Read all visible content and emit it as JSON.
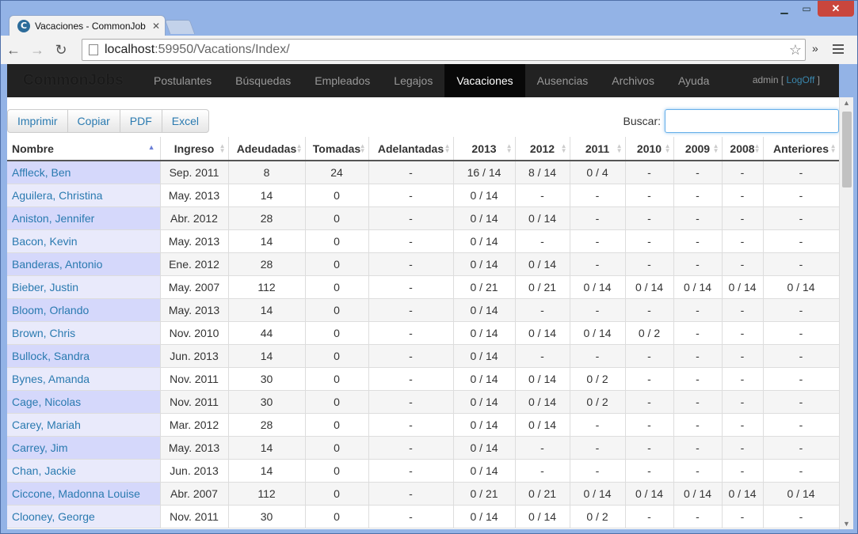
{
  "browser": {
    "tab_title": "Vacaciones - CommonJobs",
    "favicon_letter": "C",
    "url_host": "localhost",
    "url_rest": ":59950/Vacations/Index/"
  },
  "navbar": {
    "brand": "CommonJobs",
    "items": [
      "Postulantes",
      "Búsquedas",
      "Empleados",
      "Legajos",
      "Vacaciones",
      "Ausencias",
      "Archivos",
      "Ayuda"
    ],
    "active": "Vacaciones",
    "user": "admin",
    "logoff": "LogOff"
  },
  "tools": [
    "Imprimir",
    "Copiar",
    "PDF",
    "Excel"
  ],
  "search": {
    "label": "Buscar:",
    "value": ""
  },
  "table": {
    "headers": [
      "Nombre",
      "Ingreso",
      "Adeudadas",
      "Tomadas",
      "Adelantadas",
      "2013",
      "2012",
      "2011",
      "2010",
      "2009",
      "2008",
      "Anteriores"
    ],
    "rows": [
      [
        "Affleck, Ben",
        "Sep. 2011",
        "8",
        "24",
        "-",
        "16 / 14",
        "8 / 14",
        "0 / 4",
        "-",
        "-",
        "-",
        "-"
      ],
      [
        "Aguilera, Christina",
        "May. 2013",
        "14",
        "0",
        "-",
        "0 / 14",
        "-",
        "-",
        "-",
        "-",
        "-",
        "-"
      ],
      [
        "Aniston, Jennifer",
        "Abr. 2012",
        "28",
        "0",
        "-",
        "0 / 14",
        "0 / 14",
        "-",
        "-",
        "-",
        "-",
        "-"
      ],
      [
        "Bacon, Kevin",
        "May. 2013",
        "14",
        "0",
        "-",
        "0 / 14",
        "-",
        "-",
        "-",
        "-",
        "-",
        "-"
      ],
      [
        "Banderas, Antonio",
        "Ene. 2012",
        "28",
        "0",
        "-",
        "0 / 14",
        "0 / 14",
        "-",
        "-",
        "-",
        "-",
        "-"
      ],
      [
        "Bieber, Justin",
        "May. 2007",
        "112",
        "0",
        "-",
        "0 / 21",
        "0 / 21",
        "0 / 14",
        "0 / 14",
        "0 / 14",
        "0 / 14",
        "0 / 14"
      ],
      [
        "Bloom, Orlando",
        "May. 2013",
        "14",
        "0",
        "-",
        "0 / 14",
        "-",
        "-",
        "-",
        "-",
        "-",
        "-"
      ],
      [
        "Brown, Chris",
        "Nov. 2010",
        "44",
        "0",
        "-",
        "0 / 14",
        "0 / 14",
        "0 / 14",
        "0 / 2",
        "-",
        "-",
        "-"
      ],
      [
        "Bullock, Sandra",
        "Jun. 2013",
        "14",
        "0",
        "-",
        "0 / 14",
        "-",
        "-",
        "-",
        "-",
        "-",
        "-"
      ],
      [
        "Bynes, Amanda",
        "Nov. 2011",
        "30",
        "0",
        "-",
        "0 / 14",
        "0 / 14",
        "0 / 2",
        "-",
        "-",
        "-",
        "-"
      ],
      [
        "Cage, Nicolas",
        "Nov. 2011",
        "30",
        "0",
        "-",
        "0 / 14",
        "0 / 14",
        "0 / 2",
        "-",
        "-",
        "-",
        "-"
      ],
      [
        "Carey, Mariah",
        "Mar. 2012",
        "28",
        "0",
        "-",
        "0 / 14",
        "0 / 14",
        "-",
        "-",
        "-",
        "-",
        "-"
      ],
      [
        "Carrey, Jim",
        "May. 2013",
        "14",
        "0",
        "-",
        "0 / 14",
        "-",
        "-",
        "-",
        "-",
        "-",
        "-"
      ],
      [
        "Chan, Jackie",
        "Jun. 2013",
        "14",
        "0",
        "-",
        "0 / 14",
        "-",
        "-",
        "-",
        "-",
        "-",
        "-"
      ],
      [
        "Ciccone, Madonna Louise",
        "Abr. 2007",
        "112",
        "0",
        "-",
        "0 / 21",
        "0 / 21",
        "0 / 14",
        "0 / 14",
        "0 / 14",
        "0 / 14",
        "0 / 14"
      ],
      [
        "Clooney, George",
        "Nov. 2011",
        "30",
        "0",
        "-",
        "0 / 14",
        "0 / 14",
        "0 / 2",
        "-",
        "-",
        "-",
        "-"
      ]
    ]
  }
}
